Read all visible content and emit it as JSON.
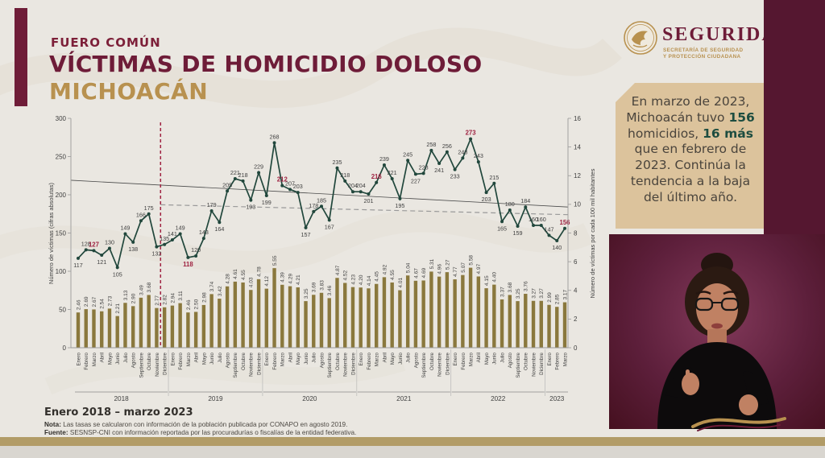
{
  "header": {
    "kicker": "FUERO COMÚN",
    "title": "VÍCTIMAS DE HOMICIDIO DOLOSO",
    "region": "MICHOACÁN"
  },
  "logo": {
    "name": "SEGURIDAD",
    "line1": "SECRETARÍA DE SEGURIDAD",
    "line2": "Y PROTECCIÓN CIUDADANA"
  },
  "callout": {
    "text": "En marzo de 2023, Michoacán tuvo 156 homicidios, 16 más que en febrero de 2023. Continúa la tendencia a la baja del último año.",
    "segments": [
      {
        "text": "En marzo de 2023, Michoacán tuvo ",
        "bold": false
      },
      {
        "text": "156",
        "bold": true
      },
      {
        "text": " homicidios, ",
        "bold": false
      },
      {
        "text": "16 más",
        "bold": true
      },
      {
        "text": " que en febrero de 2023. Continúa la tendencia a la baja del último año.",
        "bold": false
      }
    ]
  },
  "chart_data": {
    "type": "line+bar",
    "month_names": [
      "Enero",
      "Febrero",
      "Marzo",
      "Abril",
      "Mayo",
      "Junio",
      "Julio",
      "Agosto",
      "Septiembre",
      "Octubre",
      "Noviembre",
      "Diciembre"
    ],
    "years": [
      {
        "label": "2018",
        "months": 12
      },
      {
        "label": "2019",
        "months": 12
      },
      {
        "label": "2020",
        "months": 12
      },
      {
        "label": "2021",
        "months": 12
      },
      {
        "label": "2022",
        "months": 12
      },
      {
        "label": "2023",
        "months": 3
      }
    ],
    "series": [
      {
        "name": "Víctimas (cifras absolutas)",
        "type": "line",
        "values": [
          117,
          128,
          127,
          121,
          130,
          105,
          149,
          138,
          166,
          175,
          132,
          135,
          141,
          149,
          118,
          120,
          143,
          179,
          164,
          205,
          221,
          218,
          193,
          229,
          199,
          268,
          212,
          207,
          203,
          157,
          178,
          185,
          167,
          235,
          218,
          204,
          204,
          201,
          216,
          239,
          221,
          195,
          245,
          227,
          228,
          258,
          241,
          256,
          233,
          248,
          273,
          243,
          203,
          215,
          165,
          180,
          159,
          184,
          160,
          160,
          147,
          140,
          156
        ]
      },
      {
        "name": "Tasa por cada 100 mil habitantes",
        "type": "bar",
        "values": [
          2.46,
          2.69,
          2.67,
          2.54,
          2.73,
          2.21,
          3.13,
          2.9,
          3.49,
          3.68,
          2.77,
          2.82,
          2.94,
          3.11,
          2.46,
          2.5,
          2.98,
          3.74,
          3.42,
          4.28,
          4.61,
          4.55,
          4.03,
          4.78,
          4.12,
          5.55,
          4.39,
          4.29,
          4.21,
          3.25,
          3.69,
          3.83,
          3.46,
          4.87,
          4.52,
          4.23,
          4.2,
          4.14,
          4.45,
          4.92,
          4.55,
          4.01,
          5.04,
          4.67,
          4.69,
          5.31,
          4.96,
          5.27,
          4.77,
          5.07,
          5.58,
          4.97,
          4.15,
          4.4,
          3.37,
          3.68,
          3.25,
          3.76,
          3.27,
          3.27,
          2.99,
          2.85,
          3.17
        ]
      }
    ],
    "highlight_indices": [
      2,
      14,
      26,
      38,
      50,
      62
    ],
    "highlight_note": "valores de marzo resaltados en rojo",
    "reference_line_index": 11,
    "left_axis": {
      "title": "Número de víctimas (cifras absolutas)",
      "ticks": [
        0,
        50,
        100,
        150,
        200,
        250,
        300
      ],
      "max": 300
    },
    "right_axis": {
      "title": "Número de víctimas por cada 100 mil habitantes",
      "ticks": [
        0,
        2,
        4,
        6,
        8,
        10,
        12,
        14,
        16
      ],
      "max": 16
    },
    "trend_solid": {
      "start": 219,
      "end": 184
    },
    "trend_dashed": {
      "start": 187,
      "end": 174
    },
    "grid": false,
    "legend": "none"
  },
  "footer": {
    "range": "Enero 2018 – marzo 2023",
    "nota_label": "Nota:",
    "nota": "Las tasas se calcularon con información de la población publicada por CONAPO en agosto 2019.",
    "fuente_label": "Fuente:",
    "fuente": "SESNSP-CNI con información reportada por las procuradurías o fiscalías de la entidad federativa."
  },
  "colors": {
    "maroon": "#6e1c38",
    "gold": "#b8914f",
    "panel_tan": "#dcc39c",
    "line": "#21473c",
    "bar": "#8a783d",
    "red": "#9f2241",
    "axis_text": "#3f3f3f",
    "trend_solid": "#4a4a4a",
    "trend_dashed": "#999999"
  }
}
